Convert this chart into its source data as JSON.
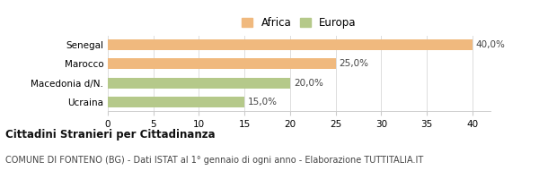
{
  "categories": [
    "Senegal",
    "Marocco",
    "Macedonia d/N.",
    "Ucraina"
  ],
  "values": [
    40.0,
    25.0,
    20.0,
    15.0
  ],
  "colors": [
    "#f0b97e",
    "#f0b97e",
    "#b5c98a",
    "#b5c98a"
  ],
  "legend_labels": [
    "Africa",
    "Europa"
  ],
  "legend_colors": [
    "#f0b97e",
    "#b5c98a"
  ],
  "value_labels": [
    "40,0%",
    "25,0%",
    "20,0%",
    "15,0%"
  ],
  "xlim": [
    0,
    42
  ],
  "xticks": [
    0,
    5,
    10,
    15,
    20,
    25,
    30,
    35,
    40
  ],
  "title_bold": "Cittadini Stranieri per Cittadinanza",
  "subtitle": "COMUNE DI FONTENO (BG) - Dati ISTAT al 1° gennaio di ogni anno - Elaborazione TUTTITALIA.IT",
  "background_color": "#ffffff",
  "bar_height": 0.55,
  "title_fontsize": 8.5,
  "subtitle_fontsize": 7.0,
  "label_fontsize": 7.5,
  "tick_fontsize": 7.5,
  "legend_fontsize": 8.5,
  "value_label_fontsize": 7.5,
  "grid_color": "#dddddd",
  "spine_color": "#cccccc",
  "text_color": "#444444",
  "title_color": "#111111"
}
